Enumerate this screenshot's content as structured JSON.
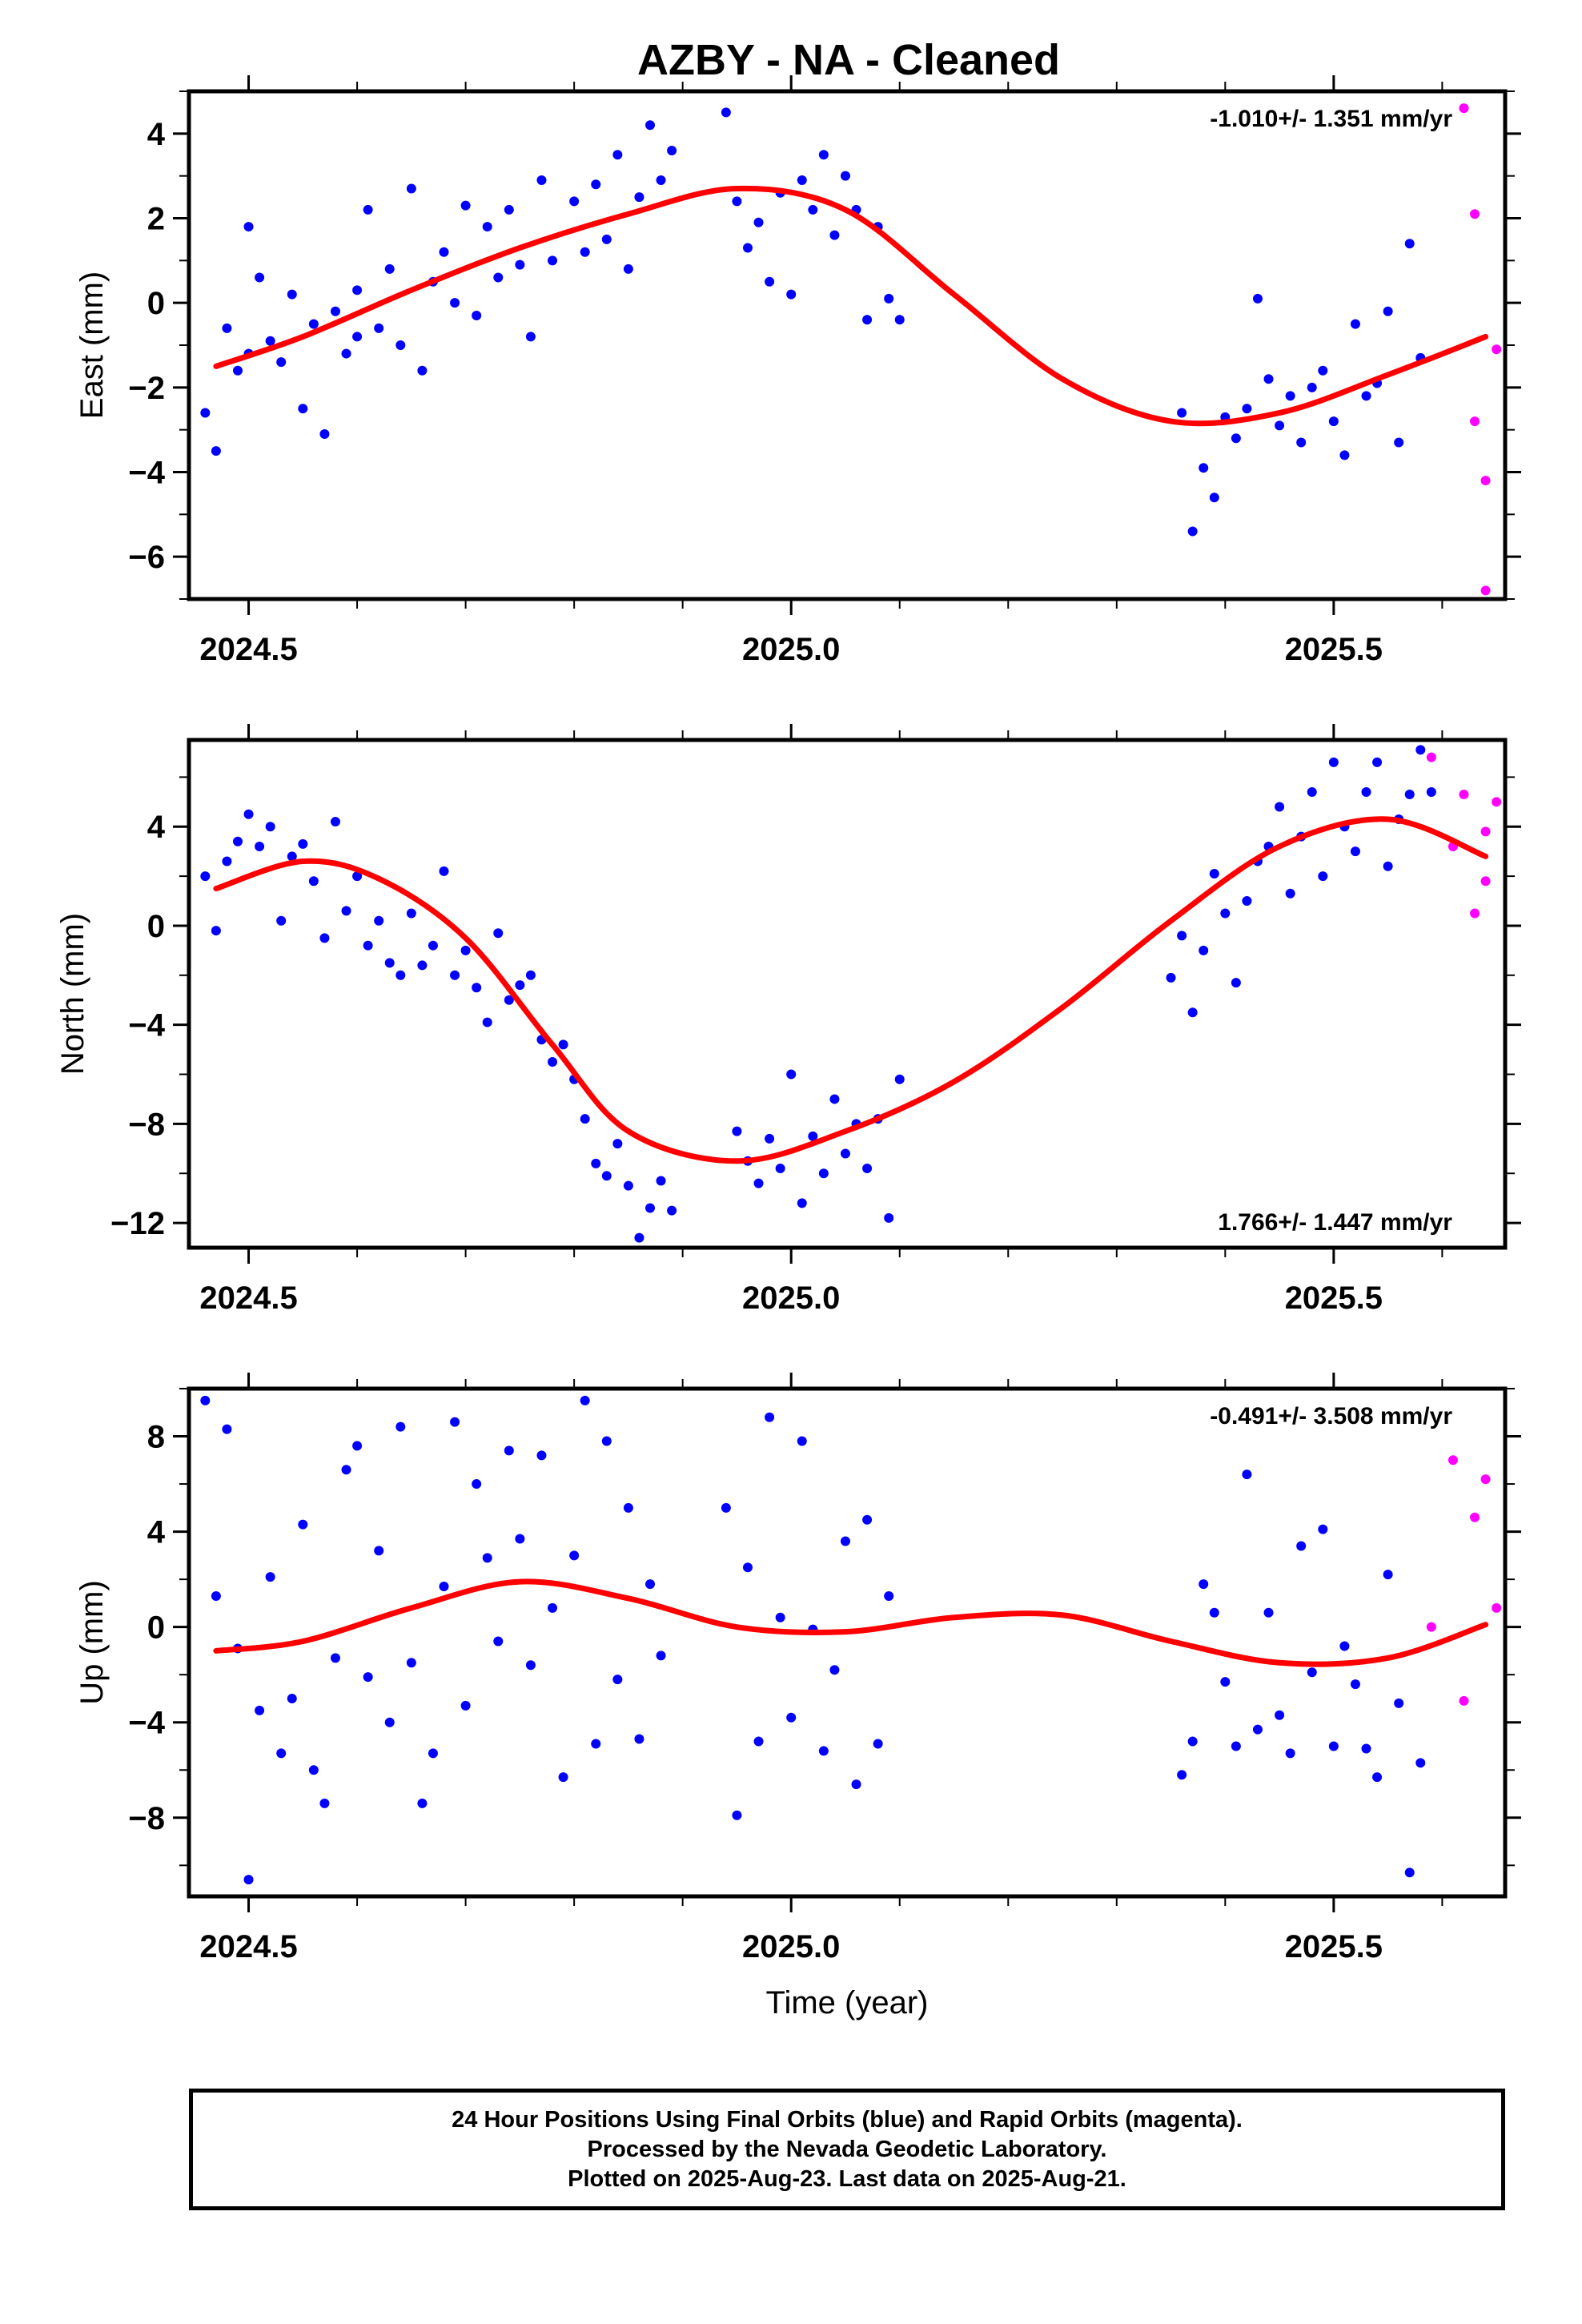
{
  "title": "AZBY  - NA - Cleaned",
  "footer": {
    "line1": "24 Hour Positions Using Final Orbits (blue) and Rapid Orbits (magenta).",
    "line2": "Processed by the Nevada Geodetic Laboratory.",
    "line3": "Plotted on 2025-Aug-23. Last data on 2025-Aug-21."
  },
  "colors": {
    "final_orbits": "#0000ff",
    "rapid_orbits": "#ff00ff",
    "fit": "#ff0000",
    "frame": "#000000"
  },
  "chart_data": [
    {
      "type": "scatter",
      "ylabel": "East (mm)",
      "xlabel": "",
      "xlim": [
        2024.445,
        2025.658
      ],
      "ylim": [
        -7,
        5
      ],
      "xticks": [
        "2024.5",
        "2025.0",
        "2025.5"
      ],
      "yticks": [
        "4",
        "2",
        "0",
        "−2",
        "−4",
        "−6"
      ],
      "rate_label": "-1.010+/- 1.351 mm/yr",
      "rate_position": "top-right",
      "fit": {
        "x": [
          2024.47,
          2024.55,
          2024.65,
          2024.75,
          2024.85,
          2024.95,
          2025.05,
          2025.15,
          2025.25,
          2025.35,
          2025.45,
          2025.55,
          2025.64
        ],
        "y": [
          -1.5,
          -0.8,
          0.3,
          1.3,
          2.1,
          2.7,
          2.2,
          0.2,
          -1.8,
          -2.8,
          -2.6,
          -1.7,
          -0.8
        ]
      },
      "final_points": {
        "x": [
          2024.46,
          2024.47,
          2024.48,
          2024.49,
          2024.5,
          2024.5,
          2024.51,
          2024.52,
          2024.53,
          2024.54,
          2024.55,
          2024.56,
          2024.57,
          2024.58,
          2024.59,
          2024.6,
          2024.6,
          2024.61,
          2024.62,
          2024.63,
          2024.64,
          2024.65,
          2024.66,
          2024.67,
          2024.68,
          2024.69,
          2024.7,
          2024.71,
          2024.72,
          2024.73,
          2024.74,
          2024.75,
          2024.76,
          2024.77,
          2024.78,
          2024.8,
          2024.81,
          2024.82,
          2024.83,
          2024.84,
          2024.85,
          2024.86,
          2024.87,
          2024.88,
          2024.89,
          2024.94,
          2024.95,
          2024.96,
          2024.97,
          2024.98,
          2024.99,
          2025.0,
          2025.01,
          2025.02,
          2025.03,
          2025.04,
          2025.05,
          2025.06,
          2025.07,
          2025.08,
          2025.09,
          2025.1,
          2025.36,
          2025.37,
          2025.38,
          2025.39,
          2025.4,
          2025.41,
          2025.42,
          2025.43,
          2025.44,
          2025.45,
          2025.46,
          2025.47,
          2025.48,
          2025.49,
          2025.5,
          2025.51,
          2025.52,
          2025.53,
          2025.54,
          2025.55,
          2025.56,
          2025.57,
          2025.58
        ],
        "y": [
          -2.6,
          -3.5,
          -0.6,
          -1.6,
          1.8,
          -1.2,
          0.6,
          -0.9,
          -1.4,
          0.2,
          -2.5,
          -0.5,
          -3.1,
          -0.2,
          -1.2,
          0.3,
          -0.8,
          2.2,
          -0.6,
          0.8,
          -1.0,
          2.7,
          -1.6,
          0.5,
          1.2,
          0.0,
          2.3,
          -0.3,
          1.8,
          0.6,
          2.2,
          0.9,
          -0.8,
          2.9,
          1.0,
          2.4,
          1.2,
          2.8,
          1.5,
          3.5,
          0.8,
          2.5,
          4.2,
          2.9,
          3.6,
          4.5,
          2.4,
          1.3,
          1.9,
          0.5,
          2.6,
          0.2,
          2.9,
          2.2,
          3.5,
          1.6,
          3.0,
          2.2,
          -0.4,
          1.8,
          0.1,
          -0.4,
          -2.6,
          -5.4,
          -3.9,
          -4.6,
          -2.7,
          -3.2,
          -2.5,
          0.1,
          -1.8,
          -2.9,
          -2.2,
          -3.3,
          -2.0,
          -1.6,
          -2.8,
          -3.6,
          -0.5,
          -2.2,
          -1.9,
          -0.2,
          -3.3,
          1.4,
          -1.3
        ],
        "color": "#0000ff"
      },
      "rapid_points": {
        "x": [
          2025.62,
          2025.63,
          2025.63,
          2025.64,
          2025.64,
          2025.65
        ],
        "y": [
          4.6,
          2.1,
          -2.8,
          -4.2,
          -6.8,
          -1.1
        ],
        "color": "#ff00ff"
      }
    },
    {
      "type": "scatter",
      "ylabel": "North (mm)",
      "xlabel": "",
      "xlim": [
        2024.445,
        2025.658
      ],
      "ylim": [
        -13,
        7.5
      ],
      "xticks": [
        "2024.5",
        "2025.0",
        "2025.5"
      ],
      "yticks": [
        "4",
        "0",
        "−4",
        "−8",
        "−12"
      ],
      "rate_label": "1.766+/- 1.447 mm/yr",
      "rate_position": "bottom-right",
      "fit": {
        "x": [
          2024.47,
          2024.55,
          2024.62,
          2024.7,
          2024.78,
          2024.85,
          2024.95,
          2025.05,
          2025.15,
          2025.25,
          2025.35,
          2025.45,
          2025.55,
          2025.64
        ],
        "y": [
          1.5,
          2.6,
          1.9,
          -0.5,
          -4.8,
          -8.3,
          -9.5,
          -8.3,
          -6.3,
          -3.3,
          0.2,
          3.2,
          4.3,
          2.8
        ]
      },
      "final_points": {
        "x": [
          2024.46,
          2024.47,
          2024.48,
          2024.49,
          2024.5,
          2024.51,
          2024.52,
          2024.53,
          2024.54,
          2024.55,
          2024.56,
          2024.57,
          2024.58,
          2024.59,
          2024.6,
          2024.61,
          2024.62,
          2024.63,
          2024.64,
          2024.65,
          2024.66,
          2024.67,
          2024.68,
          2024.69,
          2024.7,
          2024.71,
          2024.72,
          2024.73,
          2024.74,
          2024.75,
          2024.76,
          2024.77,
          2024.78,
          2024.79,
          2024.8,
          2024.81,
          2024.82,
          2024.83,
          2024.84,
          2024.85,
          2024.86,
          2024.87,
          2024.88,
          2024.89,
          2024.95,
          2024.96,
          2024.97,
          2024.98,
          2024.99,
          2025.0,
          2025.01,
          2025.02,
          2025.03,
          2025.04,
          2025.05,
          2025.06,
          2025.07,
          2025.08,
          2025.09,
          2025.1,
          2025.35,
          2025.36,
          2025.37,
          2025.38,
          2025.39,
          2025.4,
          2025.41,
          2025.42,
          2025.43,
          2025.44,
          2025.45,
          2025.46,
          2025.47,
          2025.48,
          2025.49,
          2025.5,
          2025.51,
          2025.52,
          2025.53,
          2025.54,
          2025.55,
          2025.56,
          2025.57,
          2025.58,
          2025.59
        ],
        "y": [
          2.0,
          -0.2,
          2.6,
          3.4,
          4.5,
          3.2,
          4.0,
          0.2,
          2.8,
          3.3,
          1.8,
          -0.5,
          4.2,
          0.6,
          2.0,
          -0.8,
          0.2,
          -1.5,
          -2.0,
          0.5,
          -1.6,
          -0.8,
          2.2,
          -2.0,
          -1.0,
          -2.5,
          -3.9,
          -0.3,
          -3.0,
          -2.4,
          -2.0,
          -4.6,
          -5.5,
          -4.8,
          -6.2,
          -7.8,
          -9.6,
          -10.1,
          -8.8,
          -10.5,
          -12.6,
          -11.4,
          -10.3,
          -11.5,
          -8.3,
          -9.5,
          -10.4,
          -8.6,
          -9.8,
          -6.0,
          -11.2,
          -8.5,
          -10.0,
          -7.0,
          -9.2,
          -8.0,
          -9.8,
          -7.8,
          -11.8,
          -6.2,
          -2.1,
          -0.4,
          -3.5,
          -1.0,
          2.1,
          0.5,
          -2.3,
          1.0,
          2.6,
          3.2,
          4.8,
          1.3,
          3.6,
          5.4,
          2.0,
          6.6,
          4.0,
          3.0,
          5.4,
          6.6,
          2.4,
          4.3,
          5.3,
          7.1,
          5.4
        ],
        "color": "#0000ff"
      },
      "rapid_points": {
        "x": [
          2025.59,
          2025.61,
          2025.62,
          2025.63,
          2025.64,
          2025.64,
          2025.65
        ],
        "y": [
          6.8,
          3.2,
          5.3,
          0.5,
          3.8,
          1.8,
          5.0
        ],
        "color": "#ff00ff"
      }
    },
    {
      "type": "scatter",
      "ylabel": "Up (mm)",
      "xlabel": "Time (year)",
      "xlim": [
        2024.445,
        2025.658
      ],
      "ylim": [
        -11.3,
        10
      ],
      "xticks": [
        "2024.5",
        "2025.0",
        "2025.5"
      ],
      "yticks": [
        "8",
        "4",
        "0",
        "−4",
        "−8"
      ],
      "rate_label": "-0.491+/- 3.508 mm/yr",
      "rate_position": "top-right",
      "fit": {
        "x": [
          2024.47,
          2024.55,
          2024.65,
          2024.75,
          2024.85,
          2024.95,
          2025.05,
          2025.15,
          2025.25,
          2025.35,
          2025.45,
          2025.55,
          2025.64
        ],
        "y": [
          -1.0,
          -0.6,
          0.8,
          1.9,
          1.2,
          0.0,
          -0.2,
          0.4,
          0.5,
          -0.6,
          -1.5,
          -1.3,
          0.1
        ]
      },
      "final_points": {
        "x": [
          2024.46,
          2024.47,
          2024.48,
          2024.49,
          2024.5,
          2024.51,
          2024.52,
          2024.53,
          2024.54,
          2024.55,
          2024.56,
          2024.57,
          2024.58,
          2024.59,
          2024.6,
          2024.61,
          2024.62,
          2024.63,
          2024.64,
          2024.65,
          2024.66,
          2024.67,
          2024.68,
          2024.69,
          2024.7,
          2024.71,
          2024.72,
          2024.73,
          2024.74,
          2024.75,
          2024.76,
          2024.77,
          2024.78,
          2024.79,
          2024.8,
          2024.81,
          2024.82,
          2024.83,
          2024.84,
          2024.85,
          2024.86,
          2024.87,
          2024.88,
          2024.94,
          2024.95,
          2024.96,
          2024.97,
          2024.98,
          2024.99,
          2025.0,
          2025.01,
          2025.02,
          2025.03,
          2025.04,
          2025.05,
          2025.06,
          2025.07,
          2025.08,
          2025.09,
          2025.36,
          2025.37,
          2025.38,
          2025.39,
          2025.4,
          2025.41,
          2025.42,
          2025.43,
          2025.44,
          2025.45,
          2025.46,
          2025.47,
          2025.48,
          2025.49,
          2025.5,
          2025.51,
          2025.52,
          2025.53,
          2025.54,
          2025.55,
          2025.56,
          2025.57,
          2025.58
        ],
        "y": [
          9.5,
          1.3,
          8.3,
          -0.9,
          -10.6,
          -3.5,
          2.1,
          -5.3,
          -3.0,
          4.3,
          -6.0,
          -7.4,
          -1.3,
          6.6,
          7.6,
          -2.1,
          3.2,
          -4.0,
          8.4,
          -1.5,
          -7.4,
          -5.3,
          1.7,
          8.6,
          -3.3,
          6.0,
          2.9,
          -0.6,
          7.4,
          3.7,
          -1.6,
          7.2,
          0.8,
          -6.3,
          3.0,
          9.5,
          -4.9,
          7.8,
          -2.2,
          5.0,
          -4.7,
          1.8,
          -1.2,
          5.0,
          -7.9,
          2.5,
          -4.8,
          8.8,
          0.4,
          -3.8,
          7.8,
          -0.1,
          -5.2,
          -1.8,
          3.6,
          -6.6,
          4.5,
          -4.9,
          1.3,
          -6.2,
          -4.8,
          1.8,
          0.6,
          -2.3,
          -5.0,
          6.4,
          -4.3,
          0.6,
          -3.7,
          -5.3,
          3.4,
          -1.9,
          4.1,
          -5.0,
          -0.8,
          -2.4,
          -5.1,
          -6.3,
          2.2,
          -3.2,
          -10.3,
          -5.7
        ],
        "color": "#0000ff"
      },
      "rapid_points": {
        "x": [
          2025.59,
          2025.61,
          2025.62,
          2025.63,
          2025.64,
          2025.65
        ],
        "y": [
          0.0,
          7.0,
          -3.1,
          4.6,
          6.2,
          0.8
        ],
        "color": "#ff00ff"
      }
    }
  ]
}
